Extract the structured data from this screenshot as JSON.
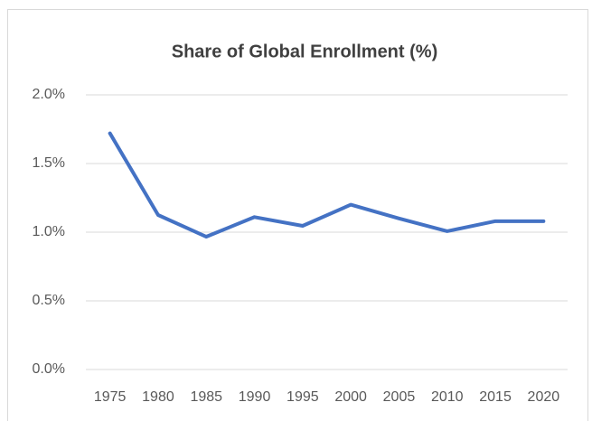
{
  "chart_data": {
    "type": "line",
    "title": "Share of Global Enrollment (%)",
    "categories": [
      "1975",
      "1980",
      "1985",
      "1990",
      "1995",
      "2000",
      "2005",
      "2010",
      "2015",
      "2020"
    ],
    "series": [
      {
        "color": "#4472c4",
        "values": [
          1.72,
          1.125,
          0.967,
          1.11,
          1.046,
          1.2,
          1.1,
          1.007,
          1.08,
          1.08
        ]
      }
    ],
    "ylim": [
      0,
      2
    ],
    "yticks": [
      {
        "value": 0,
        "label": "0.0%"
      },
      {
        "value": 0.5,
        "label": "0.5%"
      },
      {
        "value": 1,
        "label": "1.0%"
      },
      {
        "value": 1.5,
        "label": "1.5%"
      },
      {
        "value": 2,
        "label": "2.0%"
      }
    ],
    "grid": true
  }
}
